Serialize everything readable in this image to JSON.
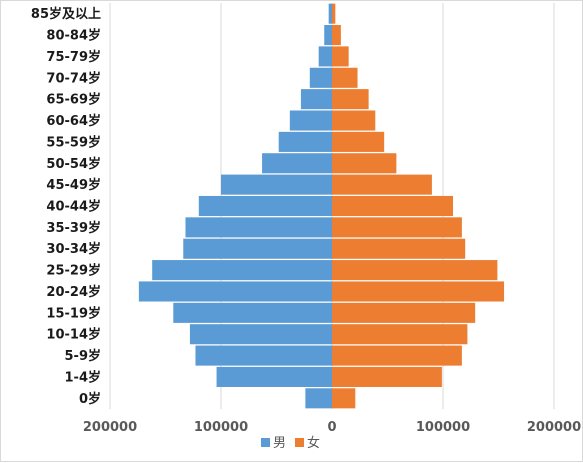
{
  "chart_data": {
    "type": "bar",
    "orientation": "horizontal",
    "diverging": true,
    "categories": [
      "85岁及以上",
      "80-84岁",
      "75-79岁",
      "70-74岁",
      "65-69岁",
      "60-64岁",
      "55-59岁",
      "50-54岁",
      "45-49岁",
      "40-44岁",
      "35-39岁",
      "30-34岁",
      "25-29岁",
      "20-24岁",
      "15-19岁",
      "10-14岁",
      "5-9岁",
      "1-4岁",
      "0岁"
    ],
    "series": [
      {
        "name": "男",
        "color": "#5b9bd5",
        "side": "left",
        "values": [
          3000,
          7000,
          12000,
          20000,
          28000,
          38000,
          48000,
          63000,
          100000,
          120000,
          132000,
          134000,
          162000,
          174000,
          143000,
          128000,
          123000,
          104000,
          24000
        ]
      },
      {
        "name": "女",
        "color": "#ed7d31",
        "side": "right",
        "values": [
          3000,
          8000,
          15000,
          23000,
          33000,
          39000,
          47000,
          58000,
          90000,
          109000,
          117000,
          120000,
          149000,
          155000,
          129000,
          122000,
          117000,
          99000,
          21000
        ]
      }
    ],
    "xlim": [
      -200000,
      200000
    ],
    "xticks": [
      "200000",
      "100000",
      "0",
      "100000",
      "200000"
    ],
    "grid": true,
    "legend": "bottom"
  }
}
